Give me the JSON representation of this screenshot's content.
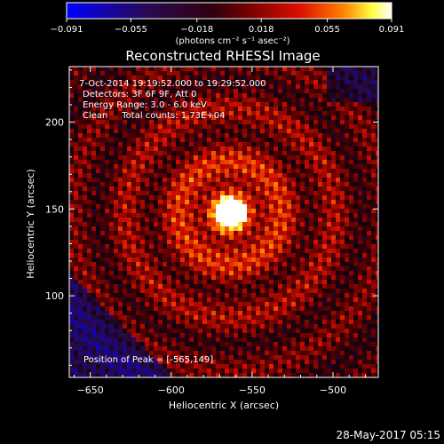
{
  "chart_data": {
    "type": "heatmap",
    "title": "Reconstructed RHESSI Image",
    "xlabel": "Heliocentric X (arcsec)",
    "ylabel": "Heliocentric Y (arcsec)",
    "xlim": [
      -663,
      -472
    ],
    "ylim": [
      53,
      232
    ],
    "x_ticks": [
      -650,
      -600,
      -550,
      -500
    ],
    "x_tick_labels": [
      "-650",
      "-600",
      "-550",
      "-500"
    ],
    "y_ticks": [
      100,
      150,
      200
    ],
    "y_tick_labels": [
      "100",
      "150",
      "200"
    ],
    "colorbar": {
      "range": [
        -0.091,
        0.091
      ],
      "ticks": [
        -0.091,
        -0.055,
        -0.018,
        0.018,
        0.055,
        0.091
      ],
      "tick_labels": [
        "-0.091",
        "-0.055",
        "-0.018",
        "0.018",
        "0.055",
        "0.091"
      ],
      "unit_label": "(photons cm⁻² s⁻¹ asec⁻²)",
      "colormap": [
        "#0000ff",
        "#2a0a40",
        "#000000",
        "#7a0000",
        "#e00000",
        "#ff8000",
        "#ffff00",
        "#ffffff"
      ]
    },
    "peak": {
      "x": -565,
      "y": 149,
      "label": "Position of Peak = [-565,149]"
    },
    "annotations": [
      "7-Oct-2014 19:19:52.000 to 19:29:52.000",
      "Detectors: 3F 6F 9F, Att 0",
      "Energy Range: 3.0 - 6.0 keV",
      "Clean     Total counts: 1.73E+04"
    ],
    "grid": false
  },
  "footer_timestamp": "28-May-2017 05:15"
}
